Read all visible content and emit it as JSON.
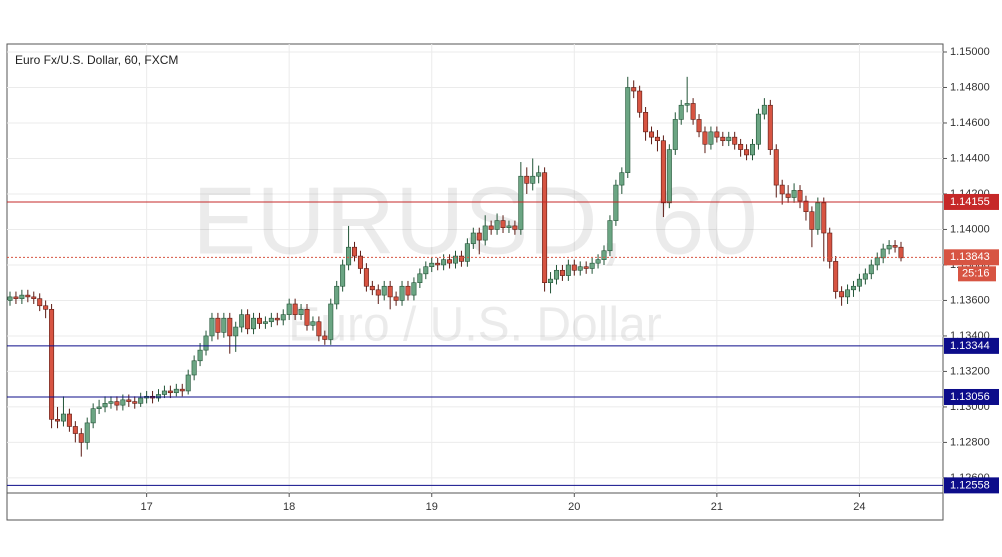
{
  "chart_data": {
    "type": "candlestick",
    "title": "Euro Fx/U.S. Dollar, 60, FXCM",
    "watermark": "EURUSD, 60",
    "watermark_subtitle": "Euro / U.S. Dollar",
    "countdown": "25:16",
    "up_color": "#6ba583",
    "up_border": "#225437",
    "down_color": "#d75442",
    "down_border": "#5b1a13",
    "categories": [
      null,
      null,
      null,
      null,
      null,
      null,
      null,
      null,
      null,
      null,
      null,
      null,
      null,
      null,
      null,
      null,
      null,
      null,
      null,
      null,
      null,
      null,
      null,
      "17",
      null,
      null,
      null,
      null,
      null,
      null,
      null,
      null,
      null,
      null,
      null,
      null,
      null,
      null,
      null,
      null,
      null,
      null,
      null,
      null,
      null,
      null,
      null,
      "18",
      null,
      null,
      null,
      null,
      null,
      null,
      null,
      null,
      null,
      null,
      null,
      null,
      null,
      null,
      null,
      null,
      null,
      null,
      null,
      null,
      null,
      null,
      null,
      "19",
      null,
      null,
      null,
      null,
      null,
      null,
      null,
      null,
      null,
      null,
      null,
      null,
      null,
      null,
      null,
      null,
      null,
      null,
      null,
      null,
      null,
      null,
      null,
      "20",
      null,
      null,
      null,
      null,
      null,
      null,
      null,
      null,
      null,
      null,
      null,
      null,
      null,
      null,
      null,
      null,
      null,
      null,
      null,
      null,
      null,
      null,
      null,
      "21",
      null,
      null,
      null,
      null,
      null,
      null,
      null,
      null,
      null,
      null,
      null,
      null,
      null,
      null,
      null,
      null,
      null,
      null,
      null,
      null,
      null,
      null,
      null,
      "24",
      null,
      null,
      null,
      null,
      null,
      null,
      null
    ],
    "open": [
      1.136,
      1.1362,
      1.1361,
      1.1363,
      1.1362,
      1.1361,
      1.1357,
      1.1355,
      1.1293,
      1.1292,
      1.1296,
      1.1289,
      1.1285,
      1.128,
      1.1291,
      1.1299,
      1.13,
      1.1302,
      1.1303,
      1.1301,
      1.1304,
      1.1303,
      1.1302,
      1.1305,
      1.1306,
      1.1305,
      1.1307,
      1.1309,
      1.1308,
      1.131,
      1.1309,
      1.1318,
      1.1326,
      1.1332,
      1.134,
      1.135,
      1.1342,
      1.135,
      1.134,
      1.1345,
      1.1352,
      1.1344,
      1.135,
      1.1347,
      1.1348,
      1.135,
      1.1349,
      1.1352,
      1.1358,
      1.1352,
      1.1355,
      1.1346,
      1.1348,
      1.134,
      1.1338,
      1.1358,
      1.1368,
      1.138,
      1.139,
      1.1385,
      1.1378,
      1.1368,
      1.1366,
      1.1363,
      1.1368,
      1.1362,
      1.136,
      1.1368,
      1.1363,
      1.137,
      1.1375,
      1.1379,
      1.1381,
      1.138,
      1.1383,
      1.1381,
      1.1385,
      1.1382,
      1.1392,
      1.1398,
      1.1394,
      1.1402,
      1.14,
      1.1405,
      1.1401,
      1.1402,
      1.14,
      1.143,
      1.1426,
      1.143,
      1.1432,
      1.137,
      1.1372,
      1.1377,
      1.1374,
      1.138,
      1.1377,
      1.1379,
      1.1378,
      1.1381,
      1.1383,
      1.1388,
      1.1405,
      1.1425,
      1.1432,
      1.148,
      1.1478,
      1.1466,
      1.1455,
      1.1452,
      1.145,
      1.1415,
      1.1445,
      1.1462,
      1.147,
      1.1471,
      1.1462,
      1.1455,
      1.1448,
      1.1455,
      1.1452,
      1.145,
      1.1452,
      1.1448,
      1.1445,
      1.1442,
      1.1448,
      1.1465,
      1.147,
      1.1445,
      1.1425,
      1.142,
      1.1418,
      1.1422,
      1.1416,
      1.141,
      1.14,
      1.1415,
      1.1398,
      1.1382,
      1.1365,
      1.1362,
      1.1366,
      1.1368,
      1.1372,
      1.1375,
      1.138,
      1.1384,
      1.1389,
      1.1391,
      1.139
    ],
    "high": [
      1.1365,
      1.1365,
      1.1366,
      1.1366,
      1.1365,
      1.1364,
      1.136,
      1.1358,
      1.13,
      1.1306,
      1.1299,
      1.1292,
      1.1288,
      1.1294,
      1.1302,
      1.1304,
      1.1306,
      1.1306,
      1.1306,
      1.1307,
      1.1307,
      1.1306,
      1.1308,
      1.1309,
      1.1309,
      1.131,
      1.1312,
      1.1312,
      1.1313,
      1.1313,
      1.1321,
      1.1329,
      1.1336,
      1.1343,
      1.1353,
      1.1353,
      1.1353,
      1.1353,
      1.1348,
      1.1355,
      1.1355,
      1.1353,
      1.1353,
      1.1351,
      1.1353,
      1.1353,
      1.1355,
      1.1361,
      1.1361,
      1.1358,
      1.1358,
      1.1351,
      1.1351,
      1.1343,
      1.1361,
      1.1371,
      1.1383,
      1.1402,
      1.1393,
      1.1388,
      1.1381,
      1.1371,
      1.1369,
      1.1371,
      1.1371,
      1.1365,
      1.1371,
      1.1371,
      1.1373,
      1.1378,
      1.1382,
      1.1384,
      1.1384,
      1.1386,
      1.1386,
      1.1388,
      1.1388,
      1.1395,
      1.1401,
      1.1401,
      1.1408,
      1.1405,
      1.1409,
      1.1408,
      1.1405,
      1.1405,
      1.1438,
      1.1435,
      1.144,
      1.1436,
      1.1435,
      1.1376,
      1.138,
      1.138,
      1.1383,
      1.1383,
      1.1382,
      1.1382,
      1.1384,
      1.1386,
      1.1391,
      1.1408,
      1.1428,
      1.1435,
      1.1486,
      1.1484,
      1.1481,
      1.1469,
      1.1458,
      1.1456,
      1.1453,
      1.1448,
      1.1466,
      1.1473,
      1.1486,
      1.1474,
      1.1465,
      1.1458,
      1.1458,
      1.1458,
      1.1455,
      1.1455,
      1.1455,
      1.1451,
      1.1448,
      1.1451,
      1.1468,
      1.1474,
      1.1473,
      1.1448,
      1.1428,
      1.1425,
      1.1426,
      1.1425,
      1.1419,
      1.1413,
      1.1418,
      1.1418,
      1.1401,
      1.1385,
      1.1368,
      1.1369,
      1.1371,
      1.1375,
      1.1378,
      1.1383,
      1.1387,
      1.1392,
      1.1394,
      1.1394,
      1.1393
    ],
    "low": [
      1.1357,
      1.1358,
      1.1358,
      1.1359,
      1.1358,
      1.1354,
      1.135,
      1.1288,
      1.1288,
      1.1289,
      1.1286,
      1.128,
      1.1272,
      1.1276,
      1.1288,
      1.1296,
      1.1297,
      1.1299,
      1.1298,
      1.1298,
      1.13,
      1.1299,
      1.13,
      1.1302,
      1.1302,
      1.1303,
      1.1305,
      1.1305,
      1.1306,
      1.1306,
      1.1307,
      1.1315,
      1.1323,
      1.1329,
      1.1337,
      1.1338,
      1.1339,
      1.133,
      1.1331,
      1.1342,
      1.1341,
      1.1341,
      1.1344,
      1.1344,
      1.1345,
      1.1346,
      1.1346,
      1.1349,
      1.1349,
      1.1349,
      1.1343,
      1.1343,
      1.1337,
      1.1335,
      1.1335,
      1.1355,
      1.1365,
      1.1377,
      1.1382,
      1.1375,
      1.1365,
      1.1363,
      1.1358,
      1.136,
      1.1355,
      1.1357,
      1.1357,
      1.136,
      1.136,
      1.1367,
      1.1372,
      1.1376,
      1.1377,
      1.1377,
      1.1378,
      1.1378,
      1.1379,
      1.1379,
      1.1389,
      1.1386,
      1.1391,
      1.1397,
      1.1397,
      1.1398,
      1.1398,
      1.1397,
      1.1397,
      1.142,
      1.1422,
      1.1426,
      1.1365,
      1.1364,
      1.1369,
      1.1371,
      1.1371,
      1.1374,
      1.1374,
      1.1375,
      1.1375,
      1.1378,
      1.138,
      1.1385,
      1.1402,
      1.142,
      1.1429,
      1.1474,
      1.1463,
      1.145,
      1.1448,
      1.1444,
      1.1407,
      1.1412,
      1.1442,
      1.1459,
      1.1466,
      1.1459,
      1.1452,
      1.1443,
      1.1445,
      1.1449,
      1.1447,
      1.1447,
      1.1445,
      1.1441,
      1.1439,
      1.1439,
      1.1445,
      1.1462,
      1.1442,
      1.1418,
      1.1414,
      1.1415,
      1.1415,
      1.1412,
      1.1405,
      1.139,
      1.1397,
      1.1382,
      1.1378,
      1.1361,
      1.1357,
      1.1358,
      1.1362,
      1.1365,
      1.1369,
      1.1372,
      1.1377,
      1.1381,
      1.1386,
      1.1387,
      1.1382
    ],
    "close": [
      1.1362,
      1.1361,
      1.1363,
      1.1362,
      1.1361,
      1.1357,
      1.1355,
      1.1293,
      1.1292,
      1.1296,
      1.1289,
      1.1285,
      1.128,
      1.1291,
      1.1299,
      1.13,
      1.1302,
      1.1303,
      1.1301,
      1.1304,
      1.1303,
      1.1302,
      1.1305,
      1.1306,
      1.1305,
      1.1307,
      1.1309,
      1.1308,
      1.131,
      1.1309,
      1.1318,
      1.1326,
      1.1332,
      1.134,
      1.135,
      1.1342,
      1.135,
      1.134,
      1.1345,
      1.1352,
      1.1344,
      1.135,
      1.1347,
      1.1348,
      1.135,
      1.1349,
      1.1352,
      1.1358,
      1.1352,
      1.1355,
      1.1346,
      1.1348,
      1.134,
      1.1338,
      1.1358,
      1.1368,
      1.138,
      1.139,
      1.1385,
      1.1378,
      1.1368,
      1.1366,
      1.1363,
      1.1368,
      1.1362,
      1.136,
      1.1368,
      1.1363,
      1.137,
      1.1375,
      1.1379,
      1.1381,
      1.138,
      1.1383,
      1.1381,
      1.1385,
      1.1382,
      1.1392,
      1.1398,
      1.1394,
      1.1402,
      1.14,
      1.1405,
      1.1401,
      1.1402,
      1.14,
      1.143,
      1.1426,
      1.143,
      1.1432,
      1.137,
      1.1372,
      1.1377,
      1.1374,
      1.138,
      1.1377,
      1.1379,
      1.1378,
      1.1381,
      1.1383,
      1.1388,
      1.1405,
      1.1425,
      1.1432,
      1.148,
      1.1478,
      1.1466,
      1.1455,
      1.1452,
      1.145,
      1.1415,
      1.1445,
      1.1462,
      1.147,
      1.1471,
      1.1462,
      1.1455,
      1.1448,
      1.1455,
      1.1452,
      1.145,
      1.1452,
      1.1448,
      1.1445,
      1.1442,
      1.1448,
      1.1465,
      1.147,
      1.1445,
      1.1425,
      1.142,
      1.1418,
      1.1422,
      1.1416,
      1.141,
      1.14,
      1.1415,
      1.1398,
      1.1382,
      1.1365,
      1.1362,
      1.1366,
      1.1368,
      1.1372,
      1.1375,
      1.138,
      1.1384,
      1.1389,
      1.1391,
      1.139,
      1.1384
    ],
    "ylim": [
      1.12515,
      1.15045
    ],
    "yticks": [
      {
        "value": 1.126,
        "label": "1.12600"
      },
      {
        "value": 1.128,
        "label": "1.12800"
      },
      {
        "value": 1.13,
        "label": "1.13000"
      },
      {
        "value": 1.132,
        "label": "1.13200"
      },
      {
        "value": 1.134,
        "label": "1.13400"
      },
      {
        "value": 1.136,
        "label": "1.13600"
      },
      {
        "value": 1.138,
        "label": "1.13800"
      },
      {
        "value": 1.14,
        "label": "1.14000"
      },
      {
        "value": 1.142,
        "label": "1.14200"
      },
      {
        "value": 1.144,
        "label": "1.14400"
      },
      {
        "value": 1.146,
        "label": "1.14600"
      },
      {
        "value": 1.148,
        "label": "1.14800"
      },
      {
        "value": 1.15,
        "label": "1.15000"
      }
    ],
    "grid": true,
    "levels": [
      {
        "value": 1.14155,
        "label": "1.14155",
        "color": "#c62828",
        "style": "solid"
      },
      {
        "value": 1.13843,
        "label": "1.13843",
        "color": "#d75442",
        "style": "dashed"
      },
      {
        "value": 1.13344,
        "label": "1.13344",
        "color": "#0c0c8a",
        "style": "solid"
      },
      {
        "value": 1.13056,
        "label": "1.13056",
        "color": "#0c0c8a",
        "style": "solid"
      },
      {
        "value": 1.12558,
        "label": "1.12558",
        "color": "#0c0c8a",
        "style": "solid"
      }
    ]
  }
}
